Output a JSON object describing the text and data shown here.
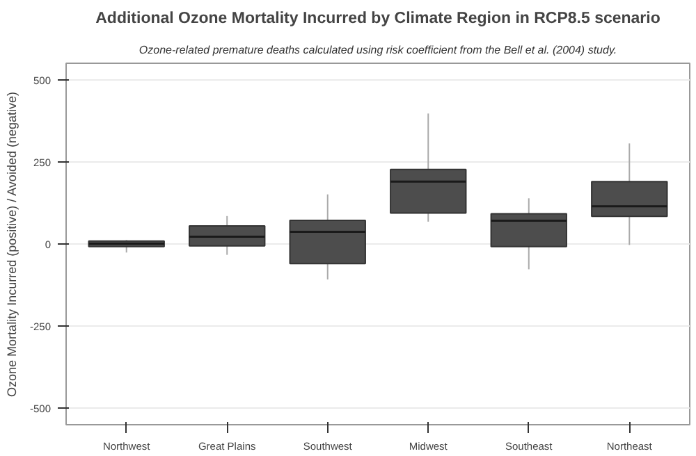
{
  "chart_data": {
    "type": "box",
    "title": "Additional Ozone Mortality Incurred by Climate Region in RCP8.5 scenario",
    "subtitle": "Ozone-related premature deaths calculated using risk coefficient from the Bell et al. (2004) study.",
    "ylabel": "Ozone Mortality Incurred (positive) / Avoided (negative)",
    "categories": [
      "Northwest",
      "Great Plains",
      "Southwest",
      "Midwest",
      "Southeast",
      "Northeast"
    ],
    "color": "#4d4d4d",
    "boxes": [
      {
        "low": -26,
        "q1": -8,
        "median": 1,
        "q3": 9,
        "high": 12
      },
      {
        "low": -33,
        "q1": -6,
        "median": 22,
        "q3": 55,
        "high": 85
      },
      {
        "low": -108,
        "q1": -60,
        "median": 37,
        "q3": 72,
        "high": 151
      },
      {
        "low": 68,
        "q1": 94,
        "median": 190,
        "q3": 227,
        "high": 397
      },
      {
        "low": -77,
        "q1": -8,
        "median": 71,
        "q3": 92,
        "high": 139
      },
      {
        "low": -3,
        "q1": 84,
        "median": 115,
        "q3": 190,
        "high": 306
      }
    ],
    "ylim": [
      -550,
      550
    ],
    "yticks": [
      -500,
      -250,
      0,
      250,
      500
    ],
    "grid": "y"
  }
}
